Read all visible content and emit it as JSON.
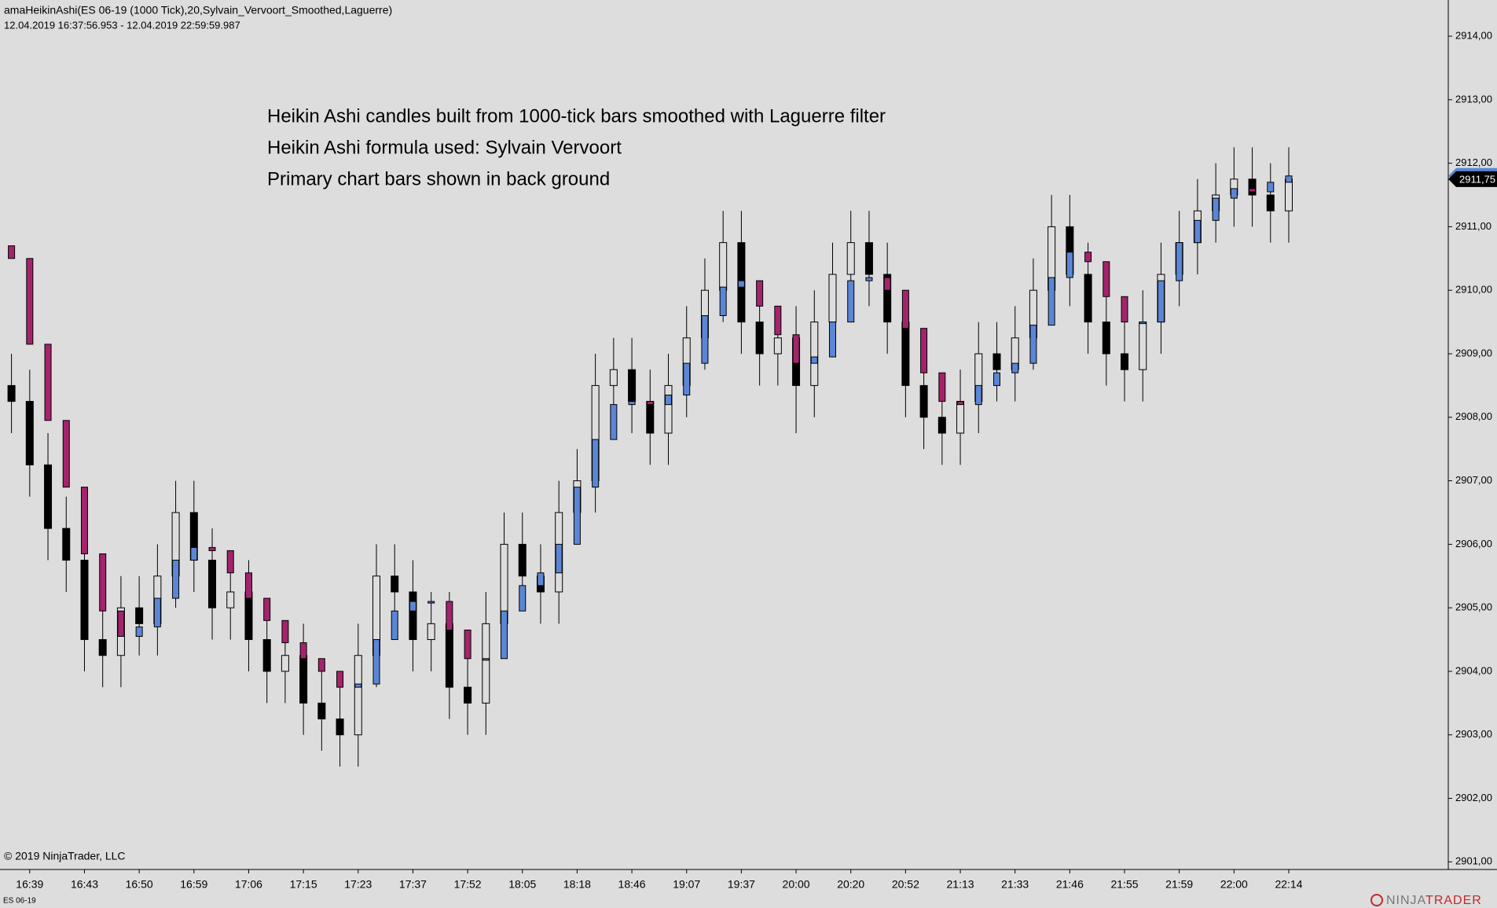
{
  "chart_data": {
    "type": "candlestick",
    "header": "amaHeikinAshi(ES 06-19 (1000 Tick),20,Sylvain_Vervoort_Smoothed,Laguerre)",
    "date_range": "12.04.2019 16:37:56.953 - 12.04.2019 22:59:59.987",
    "annotations": [
      "Heikin Ashi candles built from 1000-tick bars smoothed with Laguerre filter",
      "Heikin Ashi formula used: Sylvain Vervoort",
      "Primary chart bars shown in back ground"
    ],
    "copyright": "© 2019 NinjaTrader, LLC",
    "instrument": "ES 06-19",
    "logo": [
      "NINJA",
      "TRADER"
    ],
    "categories": [
      null,
      "16:39",
      null,
      null,
      "16:43",
      null,
      null,
      "16:50",
      null,
      null,
      "16:59",
      null,
      null,
      "17:06",
      null,
      null,
      "17:15",
      null,
      null,
      "17:23",
      null,
      null,
      "17:37",
      null,
      null,
      "17:52",
      null,
      null,
      "18:05",
      null,
      null,
      "18:18",
      null,
      null,
      "18:46",
      null,
      null,
      "19:07",
      null,
      null,
      "19:37",
      null,
      null,
      "20:00",
      null,
      null,
      "20:20",
      null,
      null,
      "20:52",
      null,
      null,
      "21:13",
      null,
      null,
      "21:33",
      null,
      null,
      "21:46",
      null,
      null,
      "21:55",
      null,
      null,
      "21:59",
      null,
      null,
      "22:00",
      null,
      null,
      "22:14"
    ],
    "price_bars": {
      "up_fill": "#dddddd",
      "down_fill": "#000000",
      "outline": "#000000",
      "open": [
        2908.5,
        2908.25,
        2907.25,
        2906.25,
        2905.75,
        2904.5,
        2904.25,
        2905.0,
        2904.75,
        2905.5,
        2906.5,
        2905.75,
        2905.0,
        2905.25,
        2904.5,
        2904.0,
        2904.25,
        2903.5,
        2903.25,
        2903.0,
        2904.25,
        2905.5,
        2905.25,
        2904.5,
        2904.75,
        2903.75,
        2903.5,
        2904.75,
        2906.0,
        2905.5,
        2905.25,
        2906.5,
        2907.0,
        2908.5,
        2908.75,
        2908.25,
        2907.75,
        2908.5,
        2909.25,
        2910.0,
        2910.75,
        2909.5,
        2909.0,
        2909.25,
        2908.5,
        2909.5,
        2910.25,
        2910.75,
        2910.25,
        2909.5,
        2908.5,
        2908.0,
        2907.75,
        2908.25,
        2909.0,
        2908.75,
        2909.25,
        2910.0,
        2911.0,
        2910.25,
        2909.5,
        2909.0,
        2908.75,
        2909.5,
        2910.25,
        2910.75,
        2911.25,
        2911.5,
        2911.75,
        2911.5,
        2911.25
      ],
      "high": [
        2909.0,
        2908.75,
        2907.75,
        2906.75,
        2906.25,
        2905.0,
        2905.5,
        2905.5,
        2906.0,
        2907.0,
        2907.0,
        2906.25,
        2905.75,
        2905.75,
        2905.0,
        2904.75,
        2904.75,
        2904.0,
        2903.75,
        2904.75,
        2906.0,
        2906.0,
        2905.75,
        2905.25,
        2905.25,
        2904.25,
        2905.25,
        2906.5,
        2906.5,
        2906.0,
        2907.0,
        2907.5,
        2909.0,
        2909.25,
        2909.25,
        2908.75,
        2909.0,
        2909.75,
        2910.5,
        2911.25,
        2911.25,
        2910.0,
        2909.75,
        2909.75,
        2910.0,
        2910.75,
        2911.25,
        2911.25,
        2910.75,
        2910.0,
        2909.0,
        2908.5,
        2908.75,
        2909.5,
        2909.5,
        2909.75,
        2910.5,
        2911.5,
        2911.5,
        2910.75,
        2910.0,
        2909.5,
        2910.0,
        2910.75,
        2911.25,
        2911.75,
        2912.0,
        2912.25,
        2912.25,
        2912.0,
        2912.25
      ],
      "low": [
        2907.75,
        2906.75,
        2905.75,
        2905.25,
        2904.0,
        2903.75,
        2903.75,
        2904.25,
        2904.25,
        2905.0,
        2905.25,
        2904.5,
        2904.5,
        2904.0,
        2903.5,
        2903.5,
        2903.0,
        2902.75,
        2902.5,
        2902.5,
        2903.75,
        2904.75,
        2904.0,
        2904.0,
        2903.25,
        2903.0,
        2903.0,
        2904.25,
        2905.0,
        2904.75,
        2904.75,
        2906.0,
        2906.5,
        2908.0,
        2907.75,
        2907.25,
        2907.25,
        2908.0,
        2908.75,
        2909.5,
        2909.0,
        2908.5,
        2908.5,
        2907.75,
        2908.0,
        2909.0,
        2909.75,
        2909.75,
        2909.0,
        2908.0,
        2907.5,
        2907.25,
        2907.25,
        2907.75,
        2908.25,
        2908.25,
        2908.75,
        2909.5,
        2909.75,
        2909.0,
        2908.5,
        2908.25,
        2908.25,
        2909.0,
        2909.75,
        2910.25,
        2910.75,
        2911.0,
        2911.0,
        2910.75,
        2910.75
      ],
      "close": [
        2908.25,
        2907.25,
        2906.25,
        2905.75,
        2904.5,
        2904.25,
        2905.0,
        2904.75,
        2905.5,
        2906.5,
        2905.75,
        2905.0,
        2905.25,
        2904.5,
        2904.0,
        2904.25,
        2903.5,
        2903.25,
        2903.0,
        2904.25,
        2905.5,
        2905.25,
        2904.5,
        2904.75,
        2903.75,
        2903.5,
        2904.75,
        2906.0,
        2905.5,
        2905.25,
        2906.5,
        2907.0,
        2908.5,
        2908.75,
        2908.25,
        2907.75,
        2908.5,
        2909.25,
        2910.0,
        2910.75,
        2909.5,
        2909.0,
        2909.25,
        2908.5,
        2909.5,
        2910.25,
        2910.75,
        2910.25,
        2909.5,
        2908.5,
        2908.0,
        2907.75,
        2908.25,
        2909.0,
        2908.75,
        2909.25,
        2910.0,
        2911.0,
        2910.25,
        2909.5,
        2909.0,
        2908.75,
        2909.5,
        2910.25,
        2910.75,
        2911.25,
        2911.5,
        2911.75,
        2911.5,
        2911.25,
        2911.75
      ]
    },
    "heikin_ashi": {
      "up_color": "#5b86d6",
      "down_color": "#a3246c",
      "open": [
        2910.7,
        2910.5,
        2909.15,
        2907.95,
        2906.9,
        2905.85,
        2904.95,
        2904.55,
        2904.7,
        2905.15,
        2905.75,
        2905.95,
        2905.9,
        2905.55,
        2905.15,
        2904.8,
        2904.45,
        2904.2,
        2904.0,
        2903.75,
        2903.8,
        2904.5,
        2904.95,
        2905.1,
        2905.1,
        2904.65,
        2904.2,
        2904.2,
        2904.95,
        2905.35,
        2905.55,
        2906.0,
        2906.9,
        2907.65,
        2908.2,
        2908.25,
        2908.2,
        2908.35,
        2908.85,
        2909.6,
        2910.05,
        2910.15,
        2909.75,
        2909.3,
        2908.85,
        2908.95,
        2909.5,
        2910.15,
        2910.2,
        2910.0,
        2909.4,
        2908.7,
        2908.25,
        2908.2,
        2908.5,
        2908.7,
        2908.85,
        2909.45,
        2910.2,
        2910.6,
        2910.45,
        2909.9,
        2909.5,
        2909.5,
        2910.15,
        2910.75,
        2911.1,
        2911.45,
        2911.6,
        2911.55,
        2911.7
      ],
      "close": [
        2910.5,
        2909.15,
        2907.95,
        2906.9,
        2905.85,
        2904.95,
        2904.55,
        2904.7,
        2905.15,
        2905.75,
        2905.95,
        2905.9,
        2905.55,
        2905.15,
        2904.8,
        2904.45,
        2904.2,
        2904.0,
        2903.75,
        2903.8,
        2904.5,
        2904.95,
        2905.1,
        2905.1,
        2904.65,
        2904.2,
        2904.2,
        2904.95,
        2905.35,
        2905.55,
        2906.0,
        2906.9,
        2907.65,
        2908.2,
        2908.25,
        2908.2,
        2908.35,
        2908.85,
        2909.6,
        2910.05,
        2910.15,
        2909.75,
        2909.3,
        2908.85,
        2908.95,
        2909.5,
        2910.15,
        2910.2,
        2910.0,
        2909.4,
        2908.7,
        2908.25,
        2908.2,
        2908.5,
        2908.7,
        2908.85,
        2909.45,
        2910.2,
        2910.6,
        2910.45,
        2909.9,
        2909.5,
        2909.5,
        2910.15,
        2910.75,
        2911.1,
        2911.45,
        2911.6,
        2911.55,
        2911.7,
        2911.8
      ]
    },
    "last_price": {
      "value": 2911.75,
      "label": "2911,75"
    },
    "ylim": [
      2900.88,
      2914.57
    ],
    "yticks": [
      {
        "value": 2901,
        "label": "2901,00"
      },
      {
        "value": 2902,
        "label": "2902,00"
      },
      {
        "value": 2903,
        "label": "2903,00"
      },
      {
        "value": 2904,
        "label": "2904,00"
      },
      {
        "value": 2905,
        "label": "2905,00"
      },
      {
        "value": 2906,
        "label": "2906,00"
      },
      {
        "value": 2907,
        "label": "2907,00"
      },
      {
        "value": 2908,
        "label": "2908,00"
      },
      {
        "value": 2909,
        "label": "2909,00"
      },
      {
        "value": 2910,
        "label": "2910,00"
      },
      {
        "value": 2911,
        "label": "2911,00"
      },
      {
        "value": 2912,
        "label": "2912,00"
      },
      {
        "value": 2913,
        "label": "2913,00"
      },
      {
        "value": 2914,
        "label": "2914,00"
      }
    ]
  }
}
